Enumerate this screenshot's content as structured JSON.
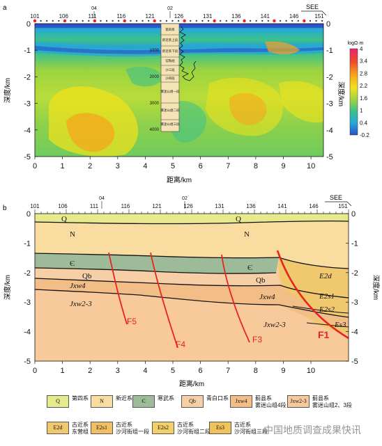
{
  "panel_a": {
    "label": "a",
    "stations": [
      "101",
      "106",
      "111",
      "116",
      "121",
      "126",
      "131",
      "136",
      "141",
      "146",
      "151"
    ],
    "marker_labels": [
      "04",
      "02"
    ],
    "see_label": "SEE",
    "depth_axis_title": "深度/km",
    "depth_ticks": [
      "0",
      "-1",
      "-2",
      "-3",
      "-4",
      "-5"
    ],
    "distance_ticks": [
      "0",
      "1",
      "2",
      "3",
      "4",
      "5",
      "6",
      "7",
      "8",
      "9",
      "10"
    ],
    "x_title": "距离/km",
    "colorbar": {
      "title": "logΩ·m",
      "ticks": [
        "4",
        "3.4",
        "2.8",
        "2.2",
        "1.6",
        "1",
        "0.4",
        "-0.2"
      ],
      "colors": [
        "#e8236e",
        "#f04a2a",
        "#f7a21b",
        "#f3e21a",
        "#9bd340",
        "#3cc18a",
        "#25a8d8",
        "#2a4fc6"
      ]
    },
    "well_log": {
      "depth_labels": [
        "1000",
        "2000",
        "3000",
        "4000"
      ],
      "units": [
        "第四系",
        "新近系上段",
        "新近系下段",
        "馆陶组",
        "沙三段",
        "沙四段",
        "雾迷山组一段",
        "雾迷山组二段",
        "雾迷山组三段"
      ]
    }
  },
  "panel_b": {
    "label": "b",
    "stations": [
      "101",
      "106",
      "111",
      "116",
      "121",
      "126",
      "131",
      "136",
      "141",
      "146",
      "151"
    ],
    "marker_labels": [
      "04",
      "02"
    ],
    "see_label": "SEE",
    "depth_axis_title": "深度/km",
    "depth_ticks": [
      "0",
      "-1",
      "-2",
      "-3",
      "-4",
      "-5"
    ],
    "distance_ticks": [
      "0",
      "1",
      "2",
      "3",
      "4",
      "5",
      "6",
      "7",
      "8",
      "9",
      "10"
    ],
    "x_title": "距离/km",
    "unit_labels": {
      "q_left": "Q",
      "q_right": "Q",
      "n_left": "N",
      "n_right": "N",
      "cam_left": "Є",
      "cam_right": "Є",
      "qb_left": "Qb",
      "qb_right": "Qb",
      "jxw4_left": "Jxw4",
      "jxw4_right": "Jxw4",
      "jxw23_left": "Jxw2-3",
      "jxw23_right": "Jxw2-3",
      "e2d": "E2d",
      "e2s1": "E2s1",
      "e2s2": "E2s2",
      "e2s3": "Es3"
    },
    "faults": [
      "F5",
      "F4",
      "F3",
      "F1"
    ]
  },
  "legend": [
    {
      "symbol": "Q",
      "label": "第四系",
      "color": "#e6ea8c"
    },
    {
      "symbol": "N",
      "label": "新近系",
      "color": "#f9dca0"
    },
    {
      "symbol": "Є",
      "label": "寒武系",
      "color": "#9dbb98"
    },
    {
      "symbol": "Qb",
      "label": "青白口系",
      "color": "#f6cfa6"
    },
    {
      "symbol": "Jxw4",
      "label": "蓟县系\n雾迷山组4段",
      "color": "#f2bd86"
    },
    {
      "symbol": "Jxw2-3",
      "label": "蓟县系\n雾迷山组2、3段",
      "color": "#f8c99a"
    },
    {
      "symbol": "E2d",
      "label": "古近系\n东营组",
      "color": "#f0c86e"
    },
    {
      "symbol": "E2s1",
      "label": "古近系\n沙河街组一段",
      "color": "#f2c063"
    },
    {
      "symbol": "E2s2",
      "label": "古近系\n沙河街组二段",
      "color": "#f3cf6a"
    },
    {
      "symbol": "Es3",
      "label": "古近系\n沙河街组三段",
      "color": "#efc25c"
    }
  ],
  "watermark": "中国地质调查成果快讯",
  "colors": {
    "fault": "#e8231e",
    "station": "#e8231e",
    "boundary": "#111111"
  }
}
